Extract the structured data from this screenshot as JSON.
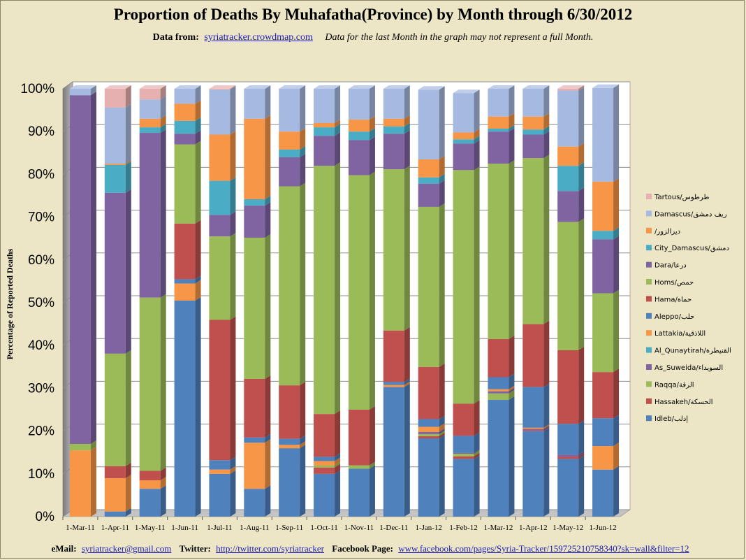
{
  "header": {
    "title": "Proportion of Deaths By Muhafatha(Province) by Month through 6/30/2012",
    "data_from_label": "Data from:",
    "data_from_link": "syriatracker.crowdmap.com",
    "note": "Data for the last Month in the graph may not represent a full Month."
  },
  "footer": {
    "email_label": "eMail:",
    "email": "syriatracker@gmail.com",
    "twitter_label": "Twitter:",
    "twitter": "http://twitter.com/syriatracker",
    "facebook_label": "Facebook  Page:",
    "facebook": "www.facebook.com/pages/Syria-Tracker/159725210758340?sk=wall&filter=12"
  },
  "chart_data": {
    "type": "bar",
    "stacked": true,
    "percent_stacked": true,
    "three_d": true,
    "title": "Proportion of Deaths By Muhafatha(Province) by Month through 6/30/2012",
    "xlabel": "",
    "ylabel": "Percentage of Reported Deaths",
    "ylim": [
      0,
      100
    ],
    "yticks": [
      "0%",
      "10%",
      "20%",
      "30%",
      "40%",
      "50%",
      "60%",
      "70%",
      "80%",
      "90%",
      "100%"
    ],
    "grid": true,
    "legend_position": "right",
    "categories": [
      "1-Mar-11",
      "1-Apr-11",
      "1-May-11",
      "1-Jun-11",
      "1-Jul-11",
      "1-Aug-11",
      "1-Sep-11",
      "1-Oct-11",
      "1-Nov-11",
      "1-Dec-11",
      "1-Jan-12",
      "1-Feb-12",
      "1-Mar-12",
      "1-Apr-12",
      "1-May-12",
      "1-Jun-12"
    ],
    "series": [
      {
        "name": "Idleb/إدلب",
        "color": "#4f81bd",
        "values": [
          0,
          1.2,
          6.5,
          50.5,
          10,
          6.5,
          16,
          10,
          11.2,
          30.3,
          18.3,
          13.5,
          27.3,
          20,
          13.5,
          11
        ]
      },
      {
        "name": "Hassakeh/الحسكة",
        "color": "#c0504d",
        "values": [
          0,
          0,
          0,
          0,
          0,
          0,
          0,
          1.5,
          0,
          0,
          0.5,
          0.6,
          0,
          0.2,
          0.5,
          0
        ]
      },
      {
        "name": "Raqqa/الرقة",
        "color": "#9bbb59",
        "values": [
          0,
          0,
          0,
          0,
          0,
          0,
          0,
          0.5,
          0.8,
          0,
          0.5,
          0.6,
          1.5,
          0,
          0,
          0
        ]
      },
      {
        "name": "As_Suweida/السويداء",
        "color": "#8064a2",
        "values": [
          0,
          0,
          0,
          0,
          0,
          0,
          0,
          0,
          0,
          0,
          0.5,
          0.2,
          0.5,
          0.3,
          0.5,
          0
        ]
      },
      {
        "name": "Al_Qunaytirah/القنيطرة",
        "color": "#4bacc6",
        "values": [
          0,
          0,
          0,
          0,
          0,
          0,
          0,
          0,
          0,
          0,
          0,
          0,
          0,
          0,
          0,
          0
        ]
      },
      {
        "name": "Lattakia/اللاذقية",
        "color": "#f79646",
        "values": [
          15.5,
          7.8,
          2,
          4,
          1,
          10.8,
          0.8,
          1,
          0,
          0.5,
          1.2,
          0,
          0.5,
          0.3,
          0,
          5.5
        ]
      },
      {
        "name": "Aleppo/حلب",
        "color": "#4f81bd",
        "values": [
          0,
          0,
          0,
          1,
          2.2,
          1.2,
          1.4,
          1,
          0,
          0.7,
          1.8,
          4,
          2.8,
          9.5,
          7.2,
          6.5
        ]
      },
      {
        "name": "Hama/حماة",
        "color": "#c0504d",
        "values": [
          0,
          2.8,
          2.2,
          13,
          32.8,
          13.7,
          12.5,
          10,
          13,
          12,
          12.2,
          7.5,
          8.9,
          14.7,
          17.2,
          10.8
        ]
      },
      {
        "name": "Homs/حمص",
        "color": "#9bbb59",
        "values": [
          1.5,
          26.3,
          40.5,
          18.5,
          19.5,
          33,
          46.5,
          58,
          54.8,
          37.7,
          37.4,
          54.6,
          41,
          38.8,
          30,
          18.4
        ]
      },
      {
        "name": "Dara/درعا",
        "color": "#8064a2",
        "values": [
          81.5,
          37.6,
          38.5,
          2.5,
          5,
          7.5,
          6.8,
          7,
          8.2,
          8.3,
          5.4,
          6.2,
          7.5,
          5.5,
          7.2,
          12.6
        ]
      },
      {
        "name": "City_Damascus/دمشق",
        "color": "#4bacc6",
        "values": [
          0,
          6.5,
          1.3,
          3,
          8,
          1.5,
          1.8,
          2,
          2,
          1.7,
          1.5,
          1,
          0.7,
          1.2,
          5.9,
          2
        ]
      },
      {
        "name": "/ديرالزور",
        "color": "#f79646",
        "values": [
          0,
          0.3,
          2,
          4,
          10.8,
          18.8,
          4.2,
          1,
          2.8,
          1.8,
          4.2,
          1.6,
          2.8,
          3,
          4.5,
          11.5
        ]
      },
      {
        "name": "Damascus/ريف دمشق",
        "color": "#a6b9e0",
        "values": [
          1.5,
          13.1,
          4.5,
          3.5,
          10.5,
          7,
          10,
          8,
          7.2,
          7,
          16.3,
          9.2,
          6.5,
          6.5,
          13.1,
          21.9
        ]
      },
      {
        "name": "Tartous/طرطوس",
        "color": "#e6b0b0",
        "values": [
          0,
          4.4,
          2.5,
          0,
          0.2,
          0,
          0,
          0,
          0,
          0,
          0,
          0,
          0,
          0,
          0.4,
          0
        ]
      }
    ]
  }
}
